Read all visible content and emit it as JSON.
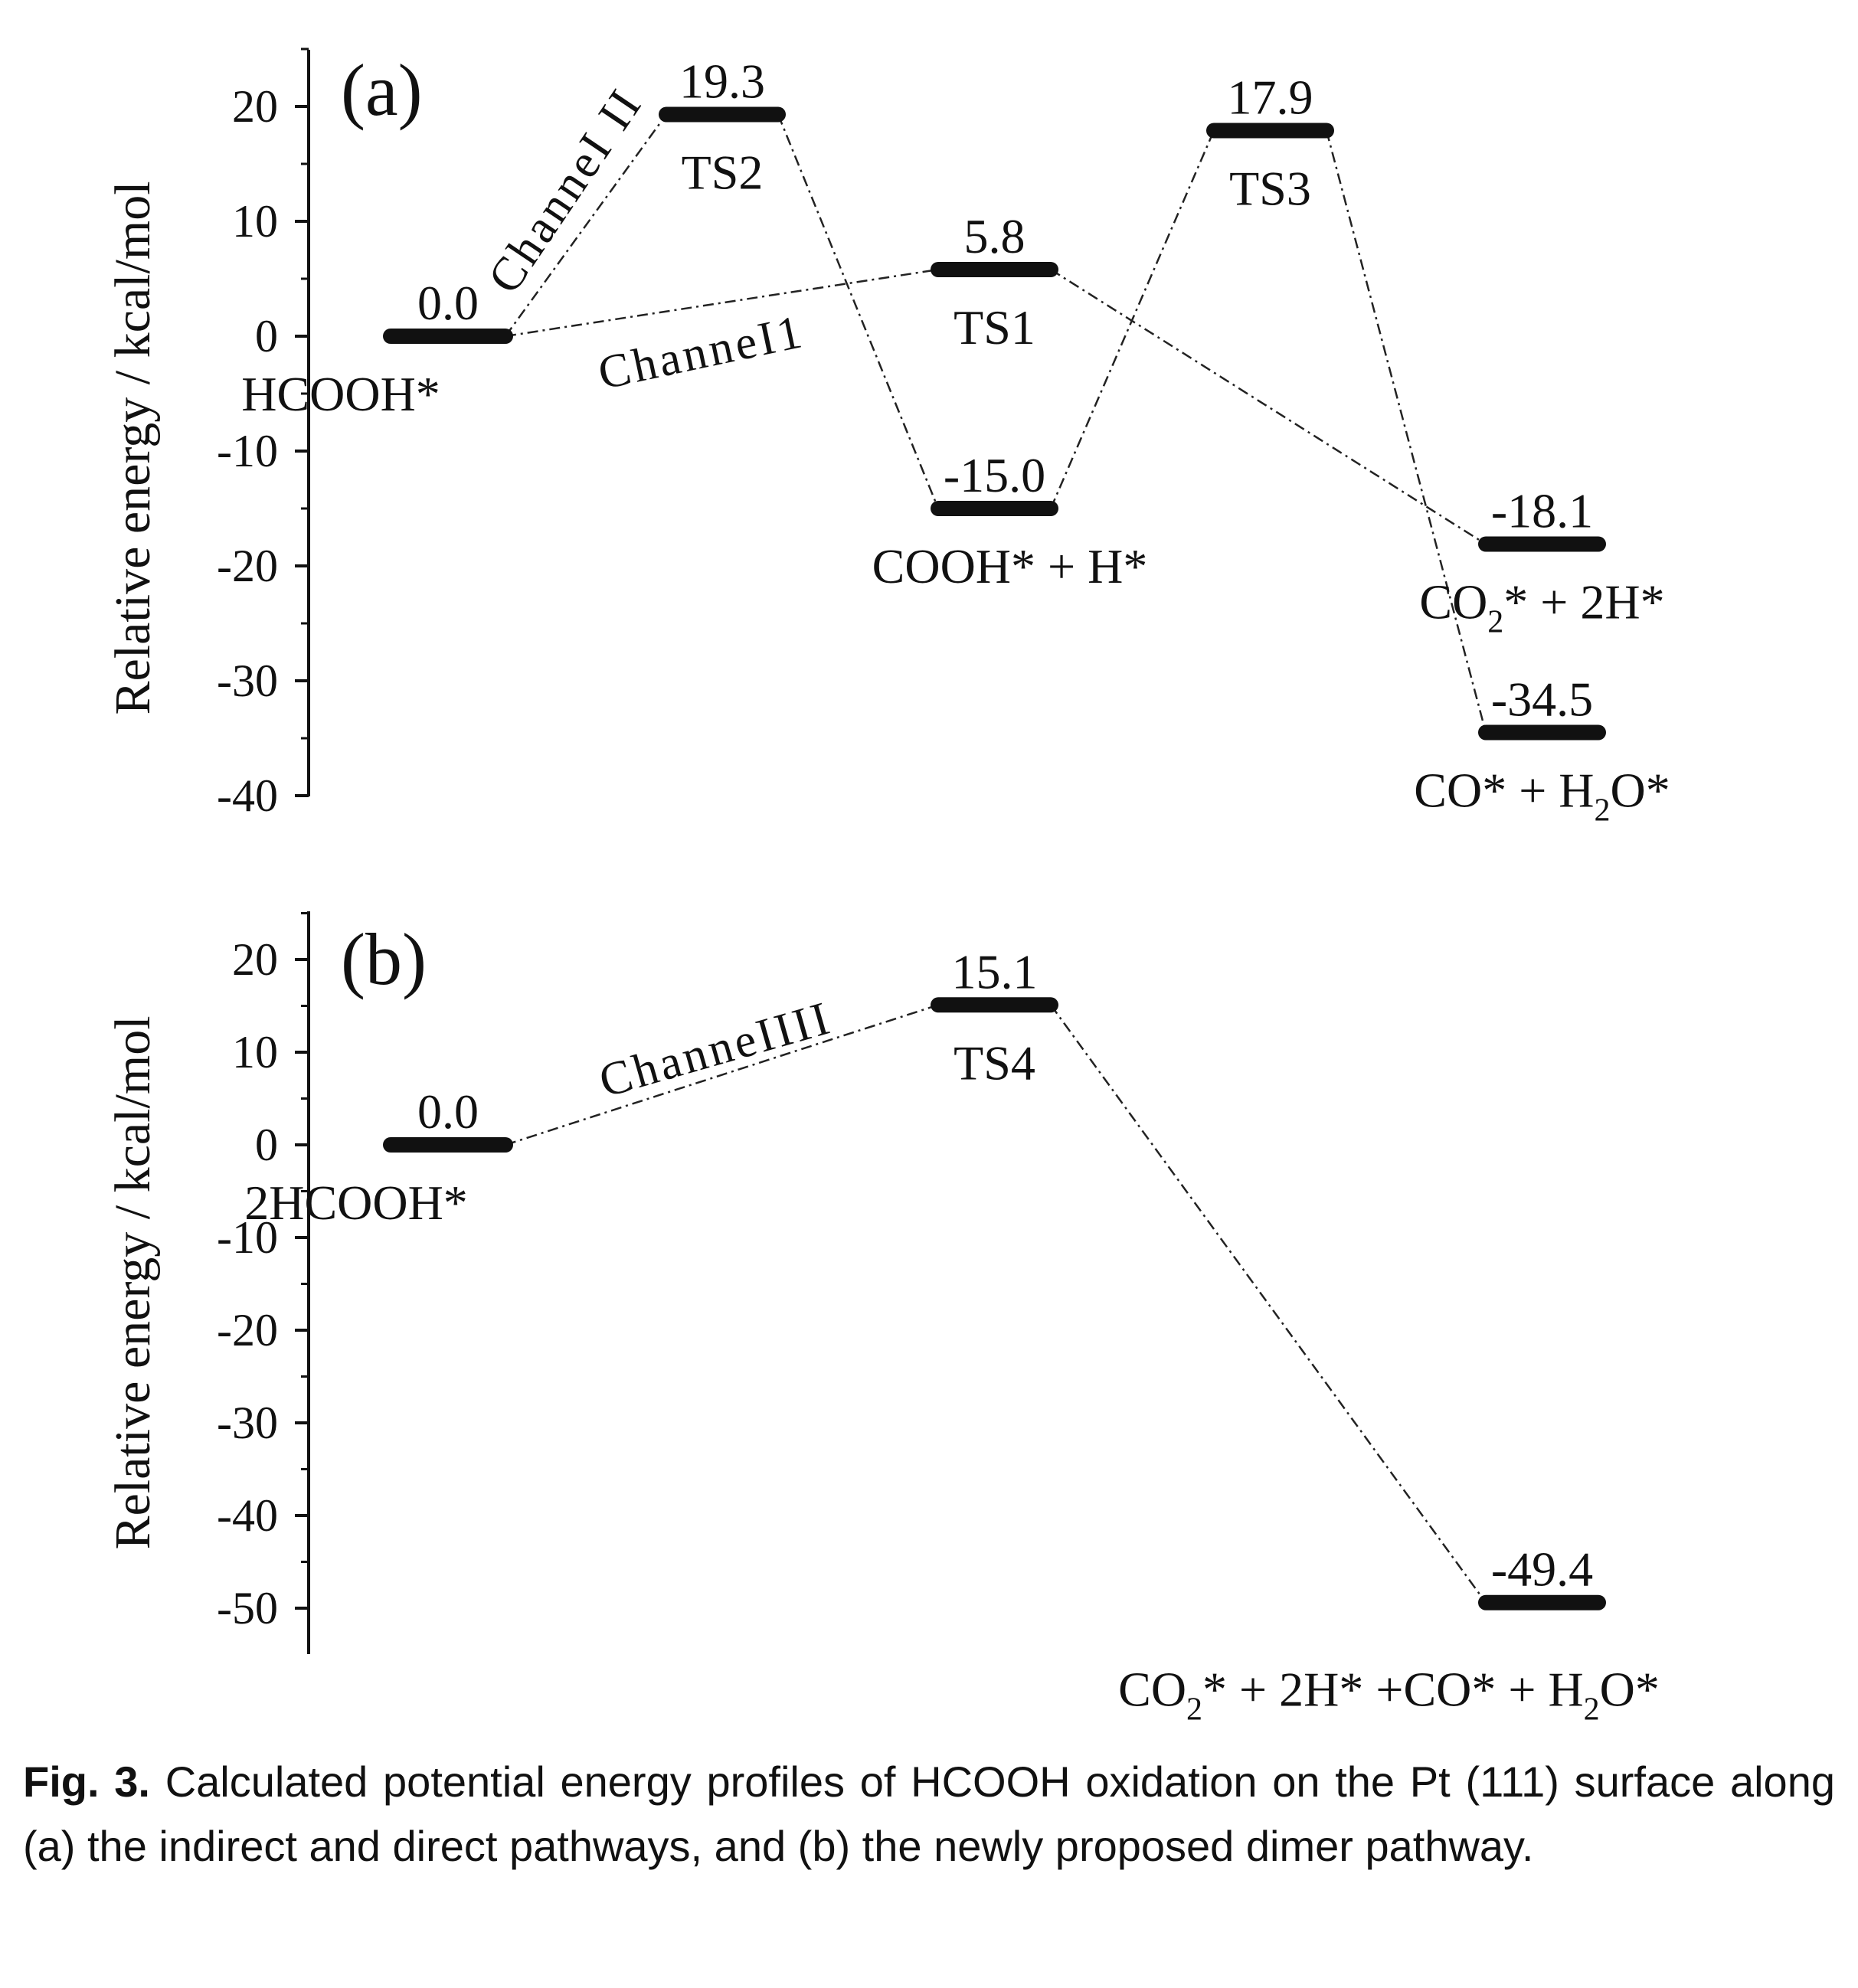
{
  "chart_data": [
    {
      "type": "line",
      "panel_label": "(a)",
      "ylabel": "Relative energy / kcal/mol",
      "ylim": [
        -40,
        25
      ],
      "yticks": [
        20,
        10,
        0,
        -10,
        -20,
        -30,
        -40
      ],
      "levels": [
        {
          "id": "hcooh",
          "value": 0.0,
          "value_label": "0.0",
          "species": "HCOOH*"
        },
        {
          "id": "ts2",
          "value": 19.3,
          "value_label": "19.3",
          "species": "TS2"
        },
        {
          "id": "ts1",
          "value": 5.8,
          "value_label": "5.8",
          "species": "TS1"
        },
        {
          "id": "cooh",
          "value": -15.0,
          "value_label": "-15.0",
          "species": "COOH* + H*"
        },
        {
          "id": "ts3",
          "value": 17.9,
          "value_label": "17.9",
          "species": "TS3"
        },
        {
          "id": "co2",
          "value": -18.1,
          "value_label": "-18.1",
          "species_main": "CO",
          "species_sub": "2",
          "species_tail": "* + 2H*"
        },
        {
          "id": "co",
          "value": -34.5,
          "value_label": "-34.5",
          "species_main": "CO* + H",
          "species_sub": "2",
          "species_tail": "O*"
        }
      ],
      "connections": [
        [
          "hcooh",
          "ts1"
        ],
        [
          "ts1",
          "co2"
        ],
        [
          "hcooh",
          "ts2"
        ],
        [
          "ts2",
          "cooh"
        ],
        [
          "cooh",
          "ts3"
        ],
        [
          "ts3",
          "co"
        ]
      ],
      "channels": [
        "ChanneI II",
        "ChanneI1"
      ]
    },
    {
      "type": "line",
      "panel_label": "(b)",
      "ylabel": "Relative energy / kcal/mol",
      "ylim": [
        -54,
        25
      ],
      "yticks": [
        20,
        10,
        0,
        -10,
        -20,
        -30,
        -40,
        -50
      ],
      "levels": [
        {
          "id": "dimer",
          "value": 0.0,
          "value_label": "0.0",
          "species": "2HCOOH*"
        },
        {
          "id": "ts4",
          "value": 15.1,
          "value_label": "15.1",
          "species": "TS4"
        },
        {
          "id": "prod",
          "value": -49.4,
          "value_label": "-49.4",
          "species_main": "CO",
          "species_sub": "2",
          "species_mid": "* + 2H* +CO* + H",
          "species_sub2": "2",
          "species_tail": "O*"
        }
      ],
      "connections": [
        [
          "dimer",
          "ts4"
        ],
        [
          "ts4",
          "prod"
        ]
      ],
      "channels": [
        "ChanneIIII"
      ]
    }
  ],
  "caption": {
    "label": "Fig. 3.",
    "text": "Calculated potential energy profiles of HCOOH oxidation on the Pt (111) surface along (a) the indirect and direct pathways, and (b) the newly proposed dimer pathway."
  }
}
